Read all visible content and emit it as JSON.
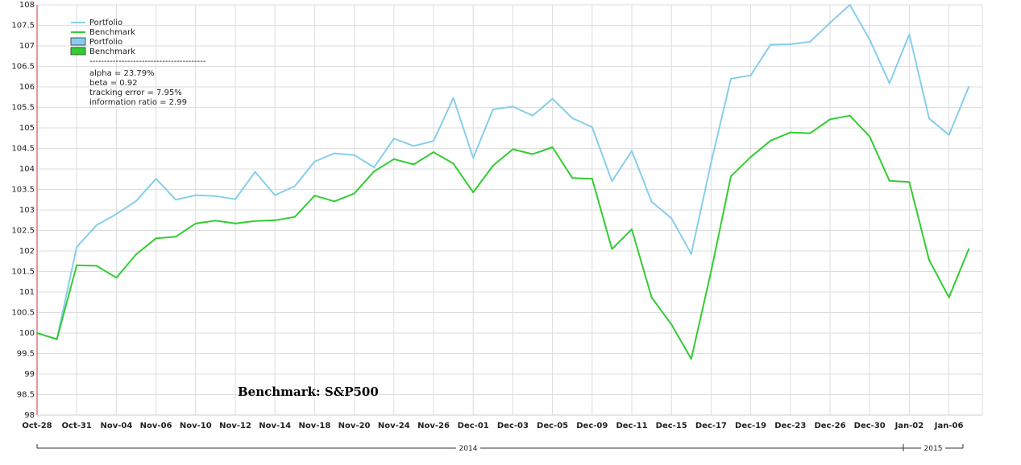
{
  "chart_data": {
    "type": "line",
    "title": "",
    "xlabel": "",
    "ylabel": "",
    "ylim": [
      98,
      108
    ],
    "grid": true,
    "legend_position": "top-left",
    "y_ticks": [
      "98",
      "98.5",
      "99",
      "99.5",
      "100",
      "100.5",
      "101",
      "101.5",
      "102",
      "102.5",
      "103",
      "103.5",
      "104",
      "104.5",
      "105",
      "105.5",
      "106",
      "106.5",
      "107",
      "107.5",
      "108"
    ],
    "x_ticks": [
      "Oct-28",
      "Oct-31",
      "Nov-04",
      "Nov-06",
      "Nov-10",
      "Nov-12",
      "Nov-14",
      "Nov-18",
      "Nov-20",
      "Nov-24",
      "Nov-26",
      "Dec-01",
      "Dec-03",
      "Dec-05",
      "Dec-09",
      "Dec-11",
      "Dec-15",
      "Dec-17",
      "Dec-19",
      "Dec-23",
      "Dec-26",
      "Dec-30",
      "Jan-02",
      "Jan-06"
    ],
    "year_labels": [
      "2014",
      "2015"
    ],
    "series": [
      {
        "name": "Portfolio",
        "color": "#87CEEB",
        "values": [
          100.0,
          99.85,
          102.1,
          102.63,
          102.9,
          103.22,
          103.76,
          103.25,
          103.36,
          103.34,
          103.26,
          103.93,
          103.36,
          103.58,
          104.18,
          104.38,
          104.34,
          104.04,
          104.74,
          104.56,
          104.68,
          105.73,
          104.27,
          105.45,
          105.52,
          105.3,
          105.71,
          105.24,
          105.02,
          103.7,
          104.44,
          103.2,
          102.8,
          101.93,
          104.15,
          106.2,
          106.28,
          107.03,
          107.04,
          107.1,
          107.56,
          108.0,
          107.15,
          106.09,
          107.28,
          105.23,
          104.83,
          106.0
        ]
      },
      {
        "name": "Benchmark",
        "color": "#33CC33",
        "values": [
          100.0,
          99.85,
          101.65,
          101.64,
          101.35,
          101.92,
          102.31,
          102.35,
          102.67,
          102.74,
          102.67,
          102.73,
          102.75,
          102.83,
          103.35,
          103.21,
          103.4,
          103.94,
          104.24,
          104.11,
          104.41,
          104.13,
          103.43,
          104.08,
          104.48,
          104.36,
          104.53,
          103.78,
          103.76,
          102.05,
          102.53,
          100.87,
          100.21,
          99.37,
          101.5,
          103.82,
          104.29,
          104.69,
          104.89,
          104.87,
          105.21,
          105.3,
          104.79,
          103.71,
          103.68,
          101.78,
          100.87,
          102.05
        ]
      }
    ]
  },
  "legend": {
    "items": [
      {
        "label": "Portfolio",
        "kind": "line",
        "color": "#87CEEB"
      },
      {
        "label": "Benchmark",
        "kind": "line",
        "color": "#33CC33"
      },
      {
        "label": "Portfolio",
        "kind": "box",
        "color": "#87CEEB"
      },
      {
        "label": "Benchmark",
        "kind": "box",
        "color": "#33CC33"
      }
    ],
    "separator": "----------------------------------------",
    "stats": [
      "alpha = 23.79%",
      "beta = 0.92",
      "tracking error = 7.95%",
      "information ratio = 2.99"
    ]
  },
  "annotation": "Benchmark: S&P500"
}
